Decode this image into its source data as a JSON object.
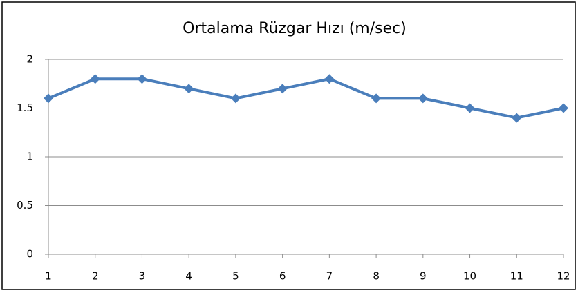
{
  "chart_data": {
    "type": "line",
    "title": "Ortalama Rüzgar Hızı (m/sec)",
    "categories": [
      "1",
      "2",
      "3",
      "4",
      "5",
      "6",
      "7",
      "8",
      "9",
      "10",
      "11",
      "12"
    ],
    "series": [
      {
        "name": "Ortalama Rüzgar Hızı",
        "color": "#4a7ebb",
        "values": [
          1.6,
          1.8,
          1.8,
          1.7,
          1.6,
          1.7,
          1.8,
          1.6,
          1.6,
          1.5,
          1.4,
          1.5
        ]
      }
    ],
    "ylim": [
      0,
      2
    ],
    "yticks": [
      0,
      0.5,
      1,
      1.5,
      2
    ],
    "grid": true
  }
}
